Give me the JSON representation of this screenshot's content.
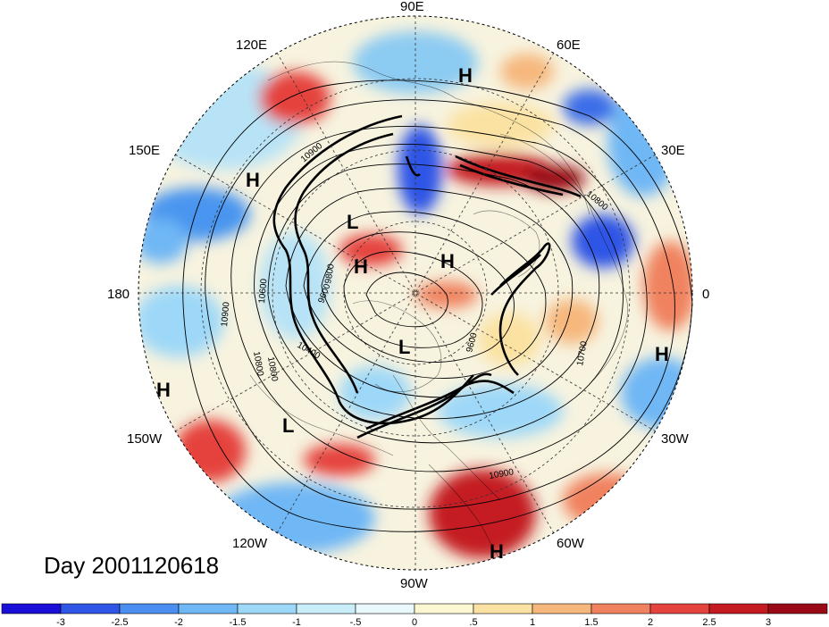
{
  "day_label": "Day 2001120618",
  "longitude_labels": [
    "90E",
    "60E",
    "30E",
    "0",
    "30W",
    "60W",
    "90W",
    "120W",
    "150W",
    "180",
    "150E",
    "120E"
  ],
  "pressure_systems": [
    {
      "type": "H"
    },
    {
      "type": "H"
    },
    {
      "type": "L"
    },
    {
      "type": "H"
    },
    {
      "type": "H"
    },
    {
      "type": "L"
    },
    {
      "type": "H"
    },
    {
      "type": "H"
    },
    {
      "type": "L"
    },
    {
      "type": "H"
    }
  ],
  "contour_labels": [
    "10900",
    "10800",
    "10700",
    "10600",
    "10400",
    "9600",
    "9800",
    "9600",
    "10900",
    "10800",
    "10900",
    "10800"
  ],
  "colorbar": {
    "ticks": [
      "-3",
      "-2.5",
      "-2",
      "-1.5",
      "-1",
      "-.5",
      "0",
      ".5",
      "1",
      "1.5",
      "2",
      "2.5",
      "3"
    ],
    "colors": [
      "#1a0fd6",
      "#2f55e6",
      "#4a8ff0",
      "#6fb7f5",
      "#9ed8f8",
      "#c9eefa",
      "#e9f8fb",
      "#fdf6d3",
      "#fbe2a2",
      "#f6b77d",
      "#f0825f",
      "#e5433d",
      "#c41a22",
      "#9a0a16"
    ]
  }
}
